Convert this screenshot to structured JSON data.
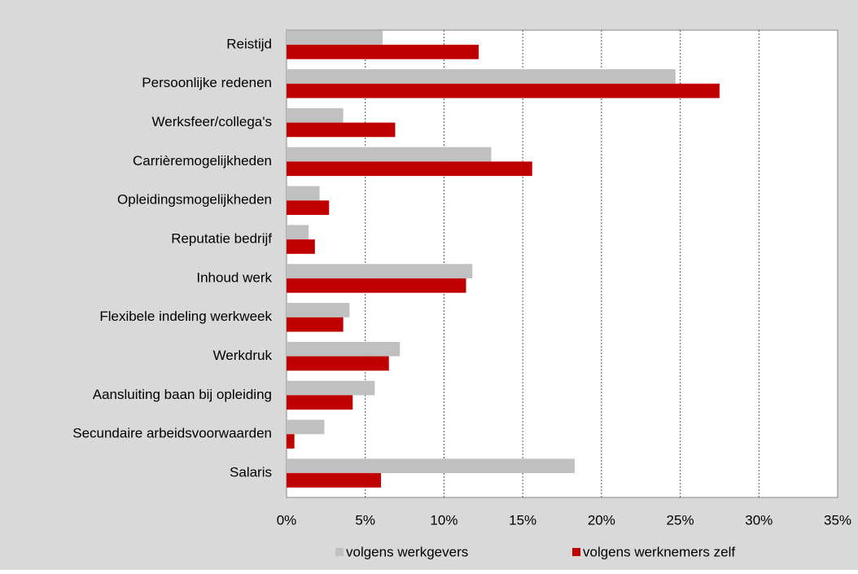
{
  "chart_data": {
    "type": "hbar",
    "categories": [
      "Reistijd",
      "Persoonlijke redenen",
      "Werksfeer/collega's",
      "Carrièremogelijkheden",
      "Opleidingsmogelijkheden",
      "Reputatie bedrijf",
      "Inhoud werk",
      "Flexibele indeling werkweek",
      "Werkdruk",
      "Aansluiting baan bij opleiding",
      "Secundaire arbeidsvoorwaarden",
      "Salaris"
    ],
    "series": [
      {
        "name": "volgens werkgevers",
        "color": "#c0c0c0",
        "values": [
          6.1,
          24.7,
          3.6,
          13.0,
          2.1,
          1.4,
          11.8,
          4.0,
          7.2,
          5.6,
          2.4,
          18.3
        ]
      },
      {
        "name": "volgens werknemers zelf",
        "color": "#c00000",
        "values": [
          12.2,
          27.5,
          6.9,
          15.6,
          2.7,
          1.8,
          11.4,
          3.6,
          6.5,
          4.2,
          0.5,
          6.0
        ]
      }
    ],
    "xlim": [
      0,
      35
    ],
    "xticks": [
      {
        "value": 0,
        "label": "0%"
      },
      {
        "value": 5,
        "label": "5%"
      },
      {
        "value": 10,
        "label": "10%"
      },
      {
        "value": 15,
        "label": "15%"
      },
      {
        "value": 20,
        "label": "20%"
      },
      {
        "value": 25,
        "label": "25%"
      },
      {
        "value": 30,
        "label": "30%"
      },
      {
        "value": 35,
        "label": "35%"
      }
    ],
    "grid": true,
    "legend": "bottom"
  }
}
